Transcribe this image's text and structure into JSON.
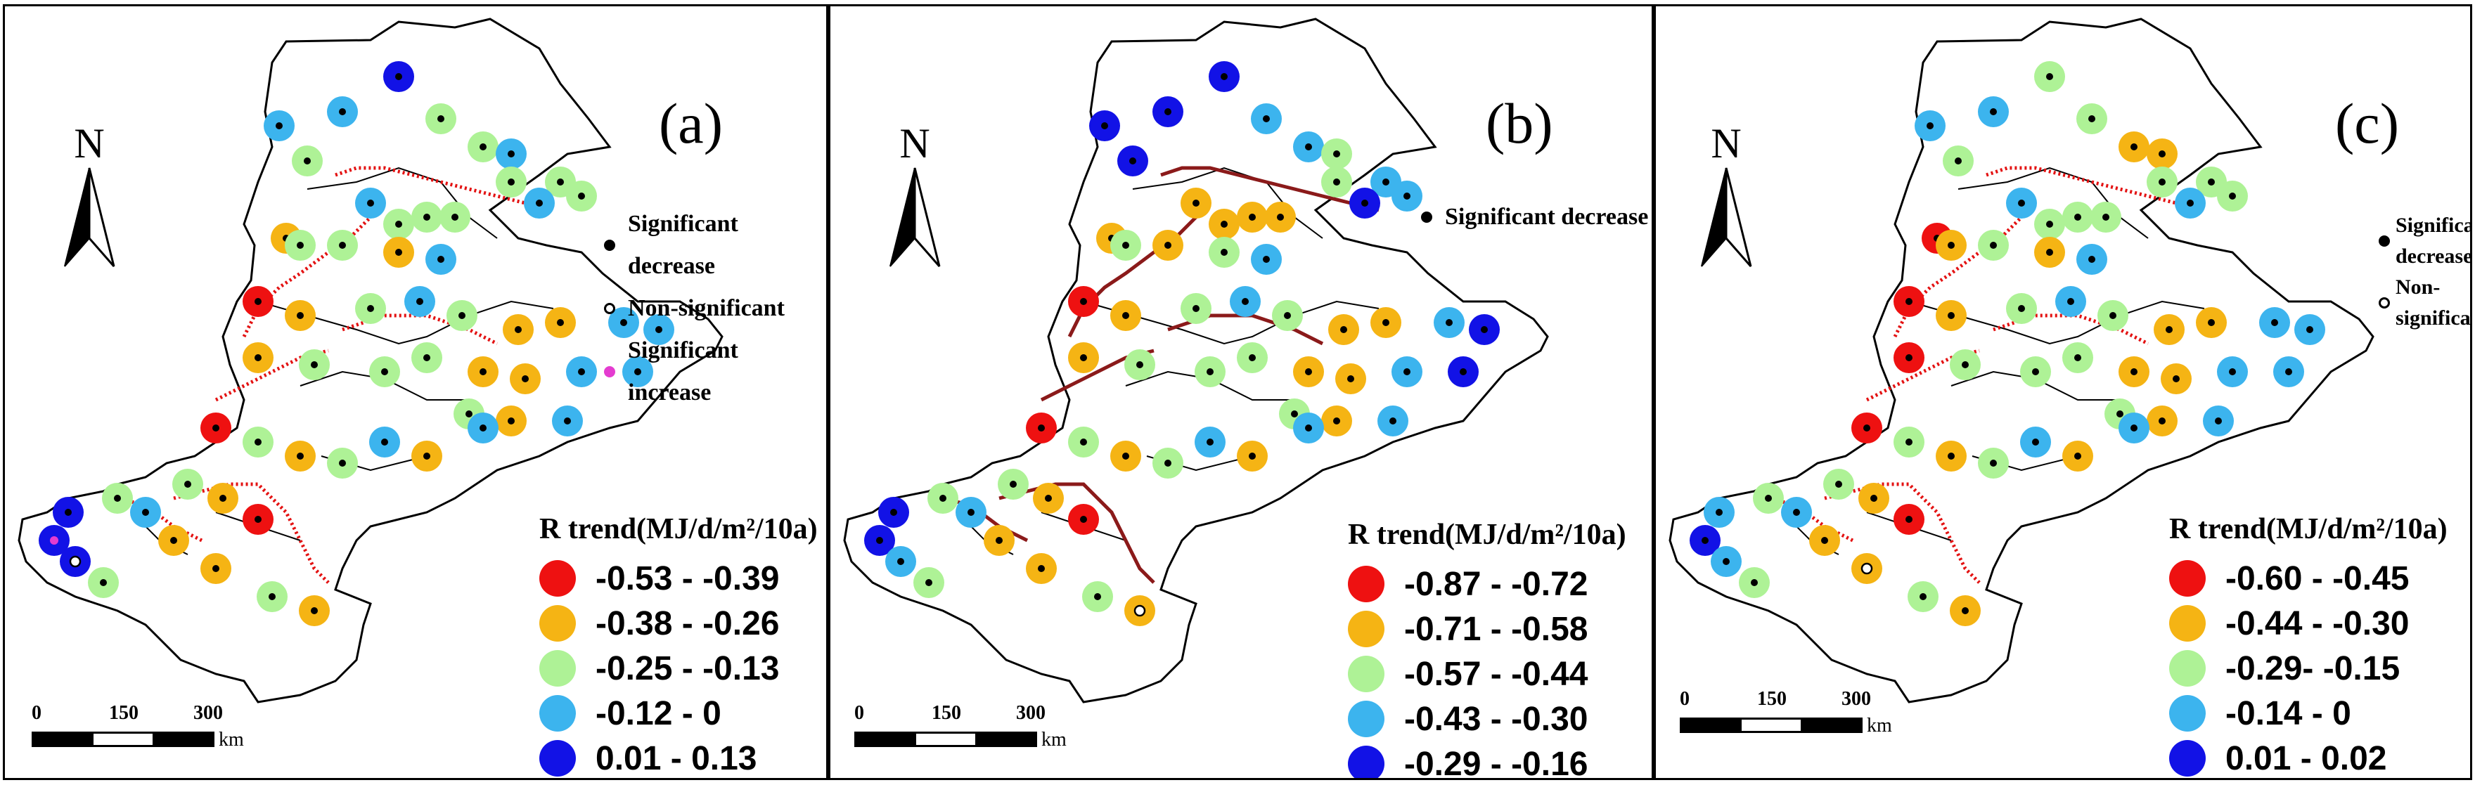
{
  "north_label": "N",
  "scale": {
    "ticks": [
      "0",
      "150",
      "300"
    ],
    "unit": "km"
  },
  "class_colors": [
    "#ee1111",
    "#f5b414",
    "#aef296",
    "#3cb4ee",
    "#1212e6"
  ],
  "panels": [
    {
      "label": "(a)",
      "legend_title": "R trend(MJ/d/m²/10a)",
      "legend": [
        "-0.53 - -0.39",
        "-0.38 - -0.26",
        "-0.25 - -0.13",
        "-0.12 - 0",
        "0.01 - 0.13"
      ],
      "significance": [
        {
          "marker": "black",
          "label": "Significant decrease"
        },
        {
          "marker": "open",
          "label": "Non-significant"
        },
        {
          "marker": "magenta",
          "label": "Significant increase"
        }
      ]
    },
    {
      "label": "(b)",
      "legend_title": "R trend(MJ/d/m²/10a)",
      "legend": [
        "-0.87 - -0.72",
        "-0.71 - -0.58",
        "-0.57 - -0.44",
        "-0.43 - -0.30",
        "-0.29 - -0.16"
      ],
      "significance": [
        {
          "marker": "black",
          "label": "Significant decrease"
        }
      ]
    },
    {
      "label": "(c)",
      "legend_title": "R trend(MJ/d/m²/10a)",
      "legend": [
        "-0.60 - -0.45",
        "-0.44 - -0.30",
        "-0.29- -0.15",
        "-0.14 - 0",
        "0.01 - 0.02"
      ],
      "significance": [
        {
          "marker": "black",
          "label": "Significant decrease"
        },
        {
          "marker": "open",
          "label": "Non-significant"
        }
      ]
    }
  ]
}
